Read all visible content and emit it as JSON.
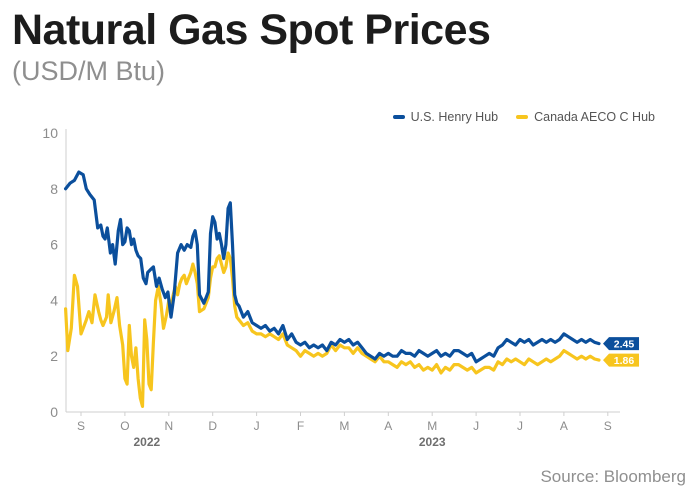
{
  "header": {
    "title": "Natural Gas Spot Prices",
    "subtitle": "(USD/M Btu)"
  },
  "footer": {
    "source": "Source: Bloomberg"
  },
  "colors": {
    "henry_hub": "#0b4f9c",
    "aeco": "#f7c51e",
    "axis": "#cfcfcf",
    "tick_text": "#8c8c8c"
  },
  "chart_data": {
    "type": "line",
    "title": "Natural Gas Spot Prices",
    "subtitle": "(USD/M Btu)",
    "xlabel": "",
    "ylabel": "",
    "ylim": [
      0,
      10
    ],
    "yticks": [
      "0",
      "2",
      "4",
      "6",
      "8",
      "10"
    ],
    "month_ticks": [
      "S",
      "O",
      "N",
      "D",
      "J",
      "F",
      "M",
      "A",
      "M",
      "J",
      "J",
      "A",
      "S"
    ],
    "year_labels": [
      {
        "label": "2022",
        "month_index": 1.5
      },
      {
        "label": "2023",
        "month_index": 8
      }
    ],
    "grid": false,
    "legend_position": "top-right",
    "x_units": "month index (0 = Sep 2022, 12 = Sep 2023)",
    "series": [
      {
        "name": "U.S. Henry Hub",
        "end_label": "2.45",
        "points": [
          [
            -0.35,
            8.0
          ],
          [
            -0.25,
            8.2
          ],
          [
            -0.15,
            8.3
          ],
          [
            -0.05,
            8.6
          ],
          [
            0.05,
            8.5
          ],
          [
            0.12,
            8.0
          ],
          [
            0.2,
            7.8
          ],
          [
            0.3,
            7.6
          ],
          [
            0.38,
            6.6
          ],
          [
            0.45,
            6.7
          ],
          [
            0.5,
            6.3
          ],
          [
            0.55,
            6.2
          ],
          [
            0.6,
            6.6
          ],
          [
            0.67,
            5.7
          ],
          [
            0.72,
            6.0
          ],
          [
            0.78,
            5.3
          ],
          [
            0.85,
            6.5
          ],
          [
            0.9,
            6.9
          ],
          [
            0.95,
            6.0
          ],
          [
            1.0,
            6.1
          ],
          [
            1.05,
            6.6
          ],
          [
            1.1,
            6.5
          ],
          [
            1.15,
            6.0
          ],
          [
            1.2,
            6.2
          ],
          [
            1.25,
            5.8
          ],
          [
            1.3,
            5.6
          ],
          [
            1.36,
            5.5
          ],
          [
            1.42,
            4.8
          ],
          [
            1.48,
            4.6
          ],
          [
            1.52,
            5.0
          ],
          [
            1.58,
            5.1
          ],
          [
            1.65,
            5.2
          ],
          [
            1.72,
            4.5
          ],
          [
            1.78,
            4.8
          ],
          [
            1.85,
            4.4
          ],
          [
            1.92,
            4.1
          ],
          [
            1.98,
            4.3
          ],
          [
            2.05,
            3.4
          ],
          [
            2.12,
            4.2
          ],
          [
            2.2,
            5.7
          ],
          [
            2.28,
            6.0
          ],
          [
            2.35,
            5.8
          ],
          [
            2.42,
            6.0
          ],
          [
            2.5,
            5.9
          ],
          [
            2.55,
            6.3
          ],
          [
            2.6,
            6.5
          ],
          [
            2.65,
            6.0
          ],
          [
            2.7,
            4.2
          ],
          [
            2.8,
            3.9
          ],
          [
            2.9,
            4.3
          ],
          [
            2.95,
            6.4
          ],
          [
            3.0,
            7.0
          ],
          [
            3.05,
            6.8
          ],
          [
            3.1,
            6.2
          ],
          [
            3.15,
            6.4
          ],
          [
            3.2,
            6.0
          ],
          [
            3.25,
            5.5
          ],
          [
            3.3,
            6.0
          ],
          [
            3.35,
            7.3
          ],
          [
            3.4,
            7.5
          ],
          [
            3.45,
            6.0
          ],
          [
            3.5,
            4.2
          ],
          [
            3.55,
            3.9
          ],
          [
            3.6,
            3.8
          ],
          [
            3.7,
            3.4
          ],
          [
            3.8,
            3.6
          ],
          [
            3.9,
            3.2
          ],
          [
            4.0,
            3.1
          ],
          [
            4.1,
            3.0
          ],
          [
            4.2,
            3.1
          ],
          [
            4.3,
            2.9
          ],
          [
            4.4,
            3.0
          ],
          [
            4.5,
            2.8
          ],
          [
            4.6,
            3.1
          ],
          [
            4.7,
            2.6
          ],
          [
            4.8,
            2.8
          ],
          [
            4.9,
            2.5
          ],
          [
            5.0,
            2.4
          ],
          [
            5.1,
            2.5
          ],
          [
            5.2,
            2.3
          ],
          [
            5.3,
            2.4
          ],
          [
            5.4,
            2.3
          ],
          [
            5.5,
            2.4
          ],
          [
            5.6,
            2.2
          ],
          [
            5.7,
            2.5
          ],
          [
            5.8,
            2.4
          ],
          [
            5.9,
            2.6
          ],
          [
            6.0,
            2.5
          ],
          [
            6.1,
            2.6
          ],
          [
            6.2,
            2.4
          ],
          [
            6.3,
            2.5
          ],
          [
            6.4,
            2.3
          ],
          [
            6.5,
            2.1
          ],
          [
            6.6,
            2.0
          ],
          [
            6.7,
            1.9
          ],
          [
            6.8,
            2.1
          ],
          [
            6.9,
            2.0
          ],
          [
            7.0,
            2.1
          ],
          [
            7.1,
            2.0
          ],
          [
            7.2,
            2.0
          ],
          [
            7.3,
            2.2
          ],
          [
            7.4,
            2.1
          ],
          [
            7.5,
            2.1
          ],
          [
            7.6,
            2.0
          ],
          [
            7.7,
            2.2
          ],
          [
            7.8,
            2.1
          ],
          [
            7.9,
            2.0
          ],
          [
            8.0,
            2.1
          ],
          [
            8.1,
            2.2
          ],
          [
            8.2,
            2.0
          ],
          [
            8.3,
            2.1
          ],
          [
            8.4,
            2.0
          ],
          [
            8.5,
            2.2
          ],
          [
            8.6,
            2.2
          ],
          [
            8.7,
            2.1
          ],
          [
            8.8,
            2.0
          ],
          [
            8.9,
            2.1
          ],
          [
            9.0,
            1.8
          ],
          [
            9.1,
            1.9
          ],
          [
            9.2,
            2.0
          ],
          [
            9.3,
            2.1
          ],
          [
            9.4,
            2.0
          ],
          [
            9.5,
            2.3
          ],
          [
            9.6,
            2.4
          ],
          [
            9.7,
            2.6
          ],
          [
            9.8,
            2.5
          ],
          [
            9.9,
            2.4
          ],
          [
            10.0,
            2.6
          ],
          [
            10.1,
            2.5
          ],
          [
            10.2,
            2.6
          ],
          [
            10.3,
            2.4
          ],
          [
            10.4,
            2.5
          ],
          [
            10.5,
            2.6
          ],
          [
            10.6,
            2.5
          ],
          [
            10.7,
            2.6
          ],
          [
            10.8,
            2.5
          ],
          [
            10.9,
            2.6
          ],
          [
            11.0,
            2.8
          ],
          [
            11.1,
            2.7
          ],
          [
            11.2,
            2.6
          ],
          [
            11.3,
            2.5
          ],
          [
            11.4,
            2.6
          ],
          [
            11.5,
            2.5
          ],
          [
            11.6,
            2.6
          ],
          [
            11.7,
            2.5
          ],
          [
            11.8,
            2.45
          ]
        ]
      },
      {
        "name": "Canada AECO C Hub",
        "end_label": "1.86",
        "points": [
          [
            -0.35,
            3.7
          ],
          [
            -0.3,
            2.2
          ],
          [
            -0.22,
            3.0
          ],
          [
            -0.15,
            4.9
          ],
          [
            -0.08,
            4.5
          ],
          [
            0.0,
            2.8
          ],
          [
            0.05,
            3.0
          ],
          [
            0.12,
            3.3
          ],
          [
            0.18,
            3.6
          ],
          [
            0.25,
            3.2
          ],
          [
            0.32,
            4.2
          ],
          [
            0.4,
            3.6
          ],
          [
            0.45,
            3.3
          ],
          [
            0.5,
            3.1
          ],
          [
            0.58,
            3.4
          ],
          [
            0.62,
            4.2
          ],
          [
            0.68,
            3.2
          ],
          [
            0.75,
            3.6
          ],
          [
            0.82,
            4.1
          ],
          [
            0.88,
            3.1
          ],
          [
            0.95,
            2.4
          ],
          [
            1.0,
            1.2
          ],
          [
            1.05,
            1.0
          ],
          [
            1.1,
            3.1
          ],
          [
            1.15,
            2.0
          ],
          [
            1.2,
            1.6
          ],
          [
            1.25,
            2.3
          ],
          [
            1.3,
            1.2
          ],
          [
            1.35,
            0.5
          ],
          [
            1.4,
            0.2
          ],
          [
            1.45,
            3.3
          ],
          [
            1.5,
            2.6
          ],
          [
            1.55,
            1.0
          ],
          [
            1.6,
            0.8
          ],
          [
            1.65,
            2.5
          ],
          [
            1.7,
            4.0
          ],
          [
            1.76,
            4.5
          ],
          [
            1.82,
            3.9
          ],
          [
            1.88,
            3.0
          ],
          [
            1.95,
            3.5
          ],
          [
            2.0,
            4.0
          ],
          [
            2.05,
            3.8
          ],
          [
            2.1,
            4.2
          ],
          [
            2.15,
            4.5
          ],
          [
            2.2,
            4.2
          ],
          [
            2.25,
            4.6
          ],
          [
            2.3,
            4.8
          ],
          [
            2.35,
            4.9
          ],
          [
            2.4,
            4.6
          ],
          [
            2.45,
            4.8
          ],
          [
            2.5,
            5.0
          ],
          [
            2.55,
            5.3
          ],
          [
            2.6,
            5.0
          ],
          [
            2.65,
            4.6
          ],
          [
            2.7,
            3.6
          ],
          [
            2.8,
            3.7
          ],
          [
            2.9,
            4.1
          ],
          [
            2.95,
            4.8
          ],
          [
            3.0,
            5.2
          ],
          [
            3.05,
            5.2
          ],
          [
            3.1,
            5.5
          ],
          [
            3.15,
            5.6
          ],
          [
            3.2,
            5.3
          ],
          [
            3.25,
            5.0
          ],
          [
            3.3,
            5.2
          ],
          [
            3.35,
            5.7
          ],
          [
            3.4,
            5.5
          ],
          [
            3.45,
            4.8
          ],
          [
            3.5,
            3.8
          ],
          [
            3.55,
            3.4
          ],
          [
            3.6,
            3.3
          ],
          [
            3.7,
            3.1
          ],
          [
            3.8,
            3.2
          ],
          [
            3.9,
            2.9
          ],
          [
            4.0,
            2.8
          ],
          [
            4.1,
            2.8
          ],
          [
            4.2,
            2.7
          ],
          [
            4.3,
            2.8
          ],
          [
            4.4,
            2.7
          ],
          [
            4.5,
            2.6
          ],
          [
            4.6,
            2.8
          ],
          [
            4.7,
            2.4
          ],
          [
            4.8,
            2.3
          ],
          [
            4.9,
            2.2
          ],
          [
            5.0,
            2.0
          ],
          [
            5.1,
            2.2
          ],
          [
            5.2,
            2.1
          ],
          [
            5.3,
            2.0
          ],
          [
            5.4,
            2.1
          ],
          [
            5.5,
            2.0
          ],
          [
            5.6,
            2.1
          ],
          [
            5.7,
            2.4
          ],
          [
            5.8,
            2.2
          ],
          [
            5.9,
            2.4
          ],
          [
            6.0,
            2.3
          ],
          [
            6.1,
            2.3
          ],
          [
            6.2,
            2.1
          ],
          [
            6.3,
            2.3
          ],
          [
            6.4,
            2.1
          ],
          [
            6.5,
            2.0
          ],
          [
            6.6,
            1.9
          ],
          [
            6.7,
            1.8
          ],
          [
            6.8,
            2.0
          ],
          [
            6.9,
            1.8
          ],
          [
            7.0,
            1.8
          ],
          [
            7.1,
            1.7
          ],
          [
            7.2,
            1.6
          ],
          [
            7.3,
            1.8
          ],
          [
            7.4,
            1.7
          ],
          [
            7.5,
            1.8
          ],
          [
            7.6,
            1.6
          ],
          [
            7.7,
            1.7
          ],
          [
            7.8,
            1.5
          ],
          [
            7.9,
            1.6
          ],
          [
            8.0,
            1.5
          ],
          [
            8.1,
            1.7
          ],
          [
            8.2,
            1.4
          ],
          [
            8.3,
            1.6
          ],
          [
            8.4,
            1.5
          ],
          [
            8.5,
            1.7
          ],
          [
            8.6,
            1.7
          ],
          [
            8.7,
            1.6
          ],
          [
            8.8,
            1.5
          ],
          [
            8.9,
            1.6
          ],
          [
            9.0,
            1.4
          ],
          [
            9.1,
            1.5
          ],
          [
            9.2,
            1.6
          ],
          [
            9.3,
            1.6
          ],
          [
            9.4,
            1.5
          ],
          [
            9.5,
            1.8
          ],
          [
            9.6,
            1.7
          ],
          [
            9.7,
            1.9
          ],
          [
            9.8,
            1.8
          ],
          [
            9.9,
            1.9
          ],
          [
            10.0,
            1.8
          ],
          [
            10.1,
            1.7
          ],
          [
            10.2,
            1.9
          ],
          [
            10.3,
            1.8
          ],
          [
            10.4,
            1.7
          ],
          [
            10.5,
            1.8
          ],
          [
            10.6,
            1.9
          ],
          [
            10.7,
            1.8
          ],
          [
            10.8,
            1.9
          ],
          [
            10.9,
            2.0
          ],
          [
            11.0,
            2.2
          ],
          [
            11.1,
            2.1
          ],
          [
            11.2,
            2.0
          ],
          [
            11.3,
            1.9
          ],
          [
            11.4,
            2.0
          ],
          [
            11.5,
            1.9
          ],
          [
            11.6,
            2.0
          ],
          [
            11.7,
            1.9
          ],
          [
            11.8,
            1.86
          ]
        ]
      }
    ]
  }
}
